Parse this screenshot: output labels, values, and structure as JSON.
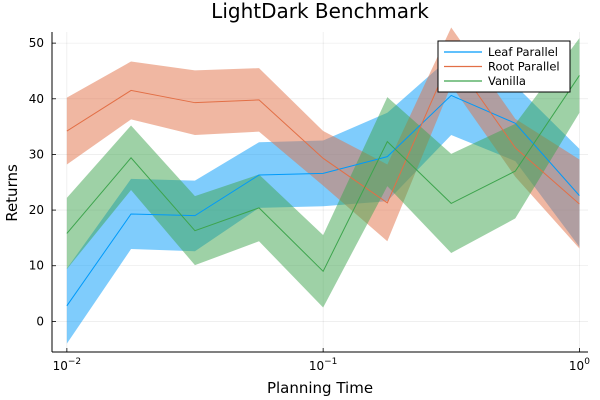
{
  "chart_data": {
    "type": "line",
    "title": "LightDark Benchmark",
    "xlabel": "Planning Time",
    "ylabel": "Returns",
    "xscale": "log10",
    "xlim": [
      0.00875,
      1.08
    ],
    "ylim": [
      -5.5,
      52
    ],
    "xticks": [
      {
        "value": 0.01,
        "base": "10",
        "exp": "−2"
      },
      {
        "value": 0.1,
        "base": "10",
        "exp": "−1"
      },
      {
        "value": 1,
        "base": "10",
        "exp": "0"
      }
    ],
    "yticks": [
      0,
      10,
      20,
      30,
      40,
      50
    ],
    "grid": true,
    "legend_position": "top-right",
    "band": "shaded interval around each mean line",
    "x": [
      0.01,
      0.0178,
      0.0316,
      0.0562,
      0.1,
      0.178,
      0.316,
      0.562,
      1.0
    ],
    "series": [
      {
        "name": "Leaf Parallel",
        "color": "#009AFA",
        "values": [
          2.8,
          19.3,
          19.0,
          26.3,
          26.6,
          29.6,
          40.6,
          35.6,
          22.6
        ],
        "lower": [
          -4.0,
          13.0,
          12.6,
          20.4,
          20.7,
          21.6,
          33.5,
          28.8,
          13.4
        ],
        "upper": [
          9.5,
          25.6,
          25.3,
          32.2,
          32.5,
          37.5,
          47.6,
          42.4,
          31.0
        ]
      },
      {
        "name": "Root Parallel",
        "color": "#E26F46",
        "values": [
          34.2,
          41.5,
          39.3,
          39.8,
          29.3,
          21.3,
          47.6,
          31.2,
          21.1
        ],
        "lower": [
          28.2,
          36.3,
          33.5,
          34.1,
          24.4,
          14.4,
          42.4,
          26.0,
          13.1
        ],
        "upper": [
          40.2,
          46.7,
          45.1,
          45.5,
          34.2,
          28.2,
          52.8,
          36.4,
          29.1
        ]
      },
      {
        "name": "Vanilla",
        "color": "#3DA44D",
        "values": [
          15.8,
          29.4,
          16.3,
          20.4,
          9.0,
          32.3,
          21.2,
          27.0,
          44.2
        ],
        "lower": [
          9.4,
          23.6,
          10.1,
          14.4,
          2.5,
          24.3,
          12.3,
          18.5,
          37.5
        ],
        "upper": [
          22.2,
          35.2,
          22.5,
          26.4,
          15.5,
          40.3,
          30.1,
          35.5,
          50.9
        ]
      }
    ]
  }
}
